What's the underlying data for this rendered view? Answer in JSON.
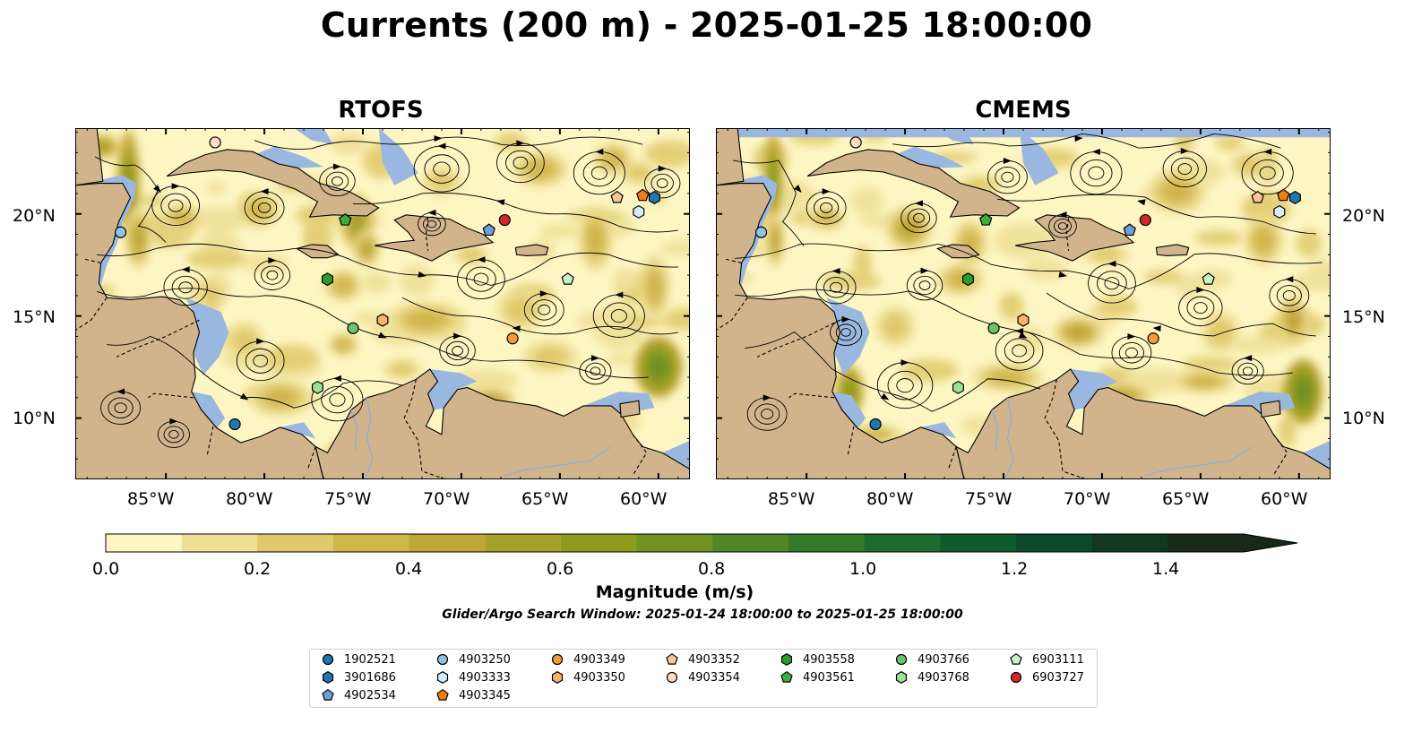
{
  "title": "Currents (200 m) - 2025-01-25 18:00:00",
  "panels": [
    {
      "title": "RTOFS"
    },
    {
      "title": "CMEMS"
    }
  ],
  "axes": {
    "lon_labels": [
      "85°W",
      "80°W",
      "75°W",
      "70°W",
      "65°W",
      "60°W"
    ],
    "lon_values": [
      -85,
      -80,
      -75,
      -70,
      -65,
      -60
    ],
    "lat_labels": [
      "20°N",
      "15°N",
      "10°N"
    ],
    "lat_values": [
      20,
      15,
      10
    ],
    "lon_range": [
      -89.6,
      -58.4
    ],
    "lat_range": [
      7.0,
      24.2
    ]
  },
  "colorbar": {
    "title": "Magnitude (m/s)",
    "tick_labels": [
      "0.0",
      "0.2",
      "0.4",
      "0.6",
      "0.8",
      "1.0",
      "1.2",
      "1.4"
    ],
    "levels": [
      0.0,
      0.1,
      0.2,
      0.3,
      0.4,
      0.5,
      0.6,
      0.7,
      0.8,
      0.9,
      1.0,
      1.1,
      1.2,
      1.3,
      1.4,
      1.5
    ],
    "colors": [
      "#fdf6c3",
      "#efdf95",
      "#e0c96a",
      "#d0b64b",
      "#bfa638",
      "#a7a02a",
      "#8c9b1e",
      "#6f9220",
      "#4f8626",
      "#347a2a",
      "#1d6b2e",
      "#105b2c",
      "#0d4a27",
      "#11391f",
      "#152a18"
    ],
    "extend": "max"
  },
  "search_window": "Glider/Argo Search Window: 2025-01-24 18:00:00 to 2025-01-25 18:00:00",
  "colors": {
    "land": "#d2b48c",
    "shallow": "#9ab7e0",
    "coast": "#000000"
  },
  "floats": [
    {
      "id": "1902521",
      "marker": "circle",
      "color": "#1f77b4",
      "lon": -81.5,
      "lat": 9.7
    },
    {
      "id": "3901686",
      "marker": "hexagon",
      "color": "#1f77b4",
      "lon": -60.2,
      "lat": 20.8
    },
    {
      "id": "4902534",
      "marker": "pentagon",
      "color": "#6f9fd8",
      "lon": -68.6,
      "lat": 19.2
    },
    {
      "id": "4903250",
      "marker": "circle",
      "color": "#90c3e8",
      "lon": -87.3,
      "lat": 19.1
    },
    {
      "id": "4903333",
      "marker": "hexagon",
      "color": "#d6ecfa",
      "lon": -61.0,
      "lat": 20.1
    },
    {
      "id": "4903345",
      "marker": "pentagon",
      "color": "#f07f12",
      "lon": -60.8,
      "lat": 20.9
    },
    {
      "id": "4903349",
      "marker": "circle",
      "color": "#f59a3c",
      "lon": -67.4,
      "lat": 13.9
    },
    {
      "id": "4903350",
      "marker": "hexagon",
      "color": "#f8b46a",
      "lon": -74.0,
      "lat": 14.8
    },
    {
      "id": "4903352",
      "marker": "pentagon",
      "color": "#f8c596",
      "lon": -62.1,
      "lat": 20.8
    },
    {
      "id": "4903354",
      "marker": "circle",
      "color": "#fddcc1",
      "lon": -82.5,
      "lat": 23.5
    },
    {
      "id": "4903558",
      "marker": "hexagon",
      "color": "#2c9c2c",
      "lon": -76.8,
      "lat": 16.8
    },
    {
      "id": "4903561",
      "marker": "pentagon",
      "color": "#3ab03a",
      "lon": -75.9,
      "lat": 19.7
    },
    {
      "id": "4903766",
      "marker": "circle",
      "color": "#69c56a",
      "lon": -75.5,
      "lat": 14.4
    },
    {
      "id": "4903768",
      "marker": "hexagon",
      "color": "#99e299",
      "lon": -77.3,
      "lat": 11.5
    },
    {
      "id": "6903111",
      "marker": "pentagon",
      "color": "#c8f4c8",
      "lon": -64.6,
      "lat": 16.8
    },
    {
      "id": "6903727",
      "marker": "circle",
      "color": "#d62728",
      "lon": -67.8,
      "lat": 19.7
    }
  ]
}
